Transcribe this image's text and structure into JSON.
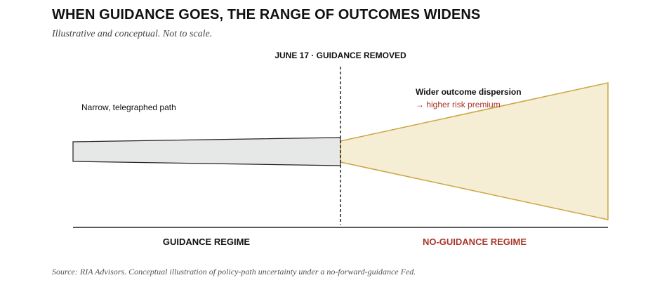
{
  "header": {
    "title": "WHEN GUIDANCE GOES, THE RANGE OF OUTCOMES WIDENS",
    "subtitle": "Illustrative and conceptual. Not to scale."
  },
  "diagram": {
    "event_label": "JUNE 17 · GUIDANCE REMOVED",
    "left_band": {
      "label": "Narrow, telegraphed path",
      "fill": "#e6e7e7",
      "stroke": "#222222"
    },
    "right_band": {
      "label": "Wider outcome dispersion",
      "sublabel": "→ higher risk premium",
      "fill": "#f6edd5",
      "stroke": "#c9a740",
      "sublabel_color": "#a9352a"
    },
    "regimes": [
      {
        "label": "GUIDANCE REGIME",
        "color": "#111111"
      },
      {
        "label": "NO-GUIDANCE REGIME",
        "color": "#a9352a"
      }
    ]
  },
  "footer": {
    "source": "Source: RIA Advisors. Conceptual illustration of policy-path uncertainty under a no-forward-guidance Fed."
  }
}
